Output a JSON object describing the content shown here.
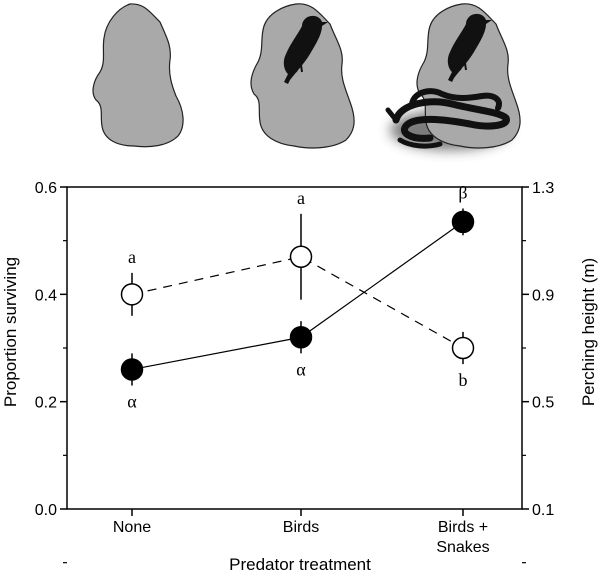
{
  "chart_data": {
    "type": "line",
    "categories": [
      "None",
      "Birds",
      "Birds + Snakes"
    ],
    "xlabel": "Predator treatment",
    "ylabel_left": "Proportion surviving",
    "ylabel_right": "Perching height (m)",
    "ylim_left": [
      0.0,
      0.6
    ],
    "ylim_right": [
      0.1,
      1.3
    ],
    "yticks_left": [
      "0.0",
      "0.2",
      "0.4",
      "0.6"
    ],
    "yticks_right": [
      "0.1",
      "0.5",
      "0.9",
      "1.3"
    ],
    "grid": false,
    "series": [
      {
        "marker": "open",
        "line": "dashed",
        "axis": "left",
        "values": [
          0.4,
          0.47,
          0.3
        ],
        "err_low": [
          0.36,
          0.39,
          0.27
        ],
        "err_high": [
          0.44,
          0.55,
          0.33
        ],
        "letters": [
          "a",
          "a",
          "b"
        ],
        "letter_side": [
          "above",
          "above",
          "below"
        ]
      },
      {
        "marker": "filled",
        "line": "solid",
        "axis": "right",
        "values": [
          0.62,
          0.74,
          1.17
        ],
        "err_low": [
          0.56,
          0.68,
          1.12
        ],
        "err_high": [
          0.68,
          0.8,
          1.22
        ],
        "letters": [
          "α",
          "α",
          "β"
        ],
        "letter_side": [
          "below",
          "below",
          "above"
        ]
      }
    ]
  },
  "illustrations": {
    "islands": [
      "island-empty",
      "island-bird",
      "island-bird-snake"
    ],
    "island_color": "#a9a9a9",
    "animal_color": "#111111"
  }
}
